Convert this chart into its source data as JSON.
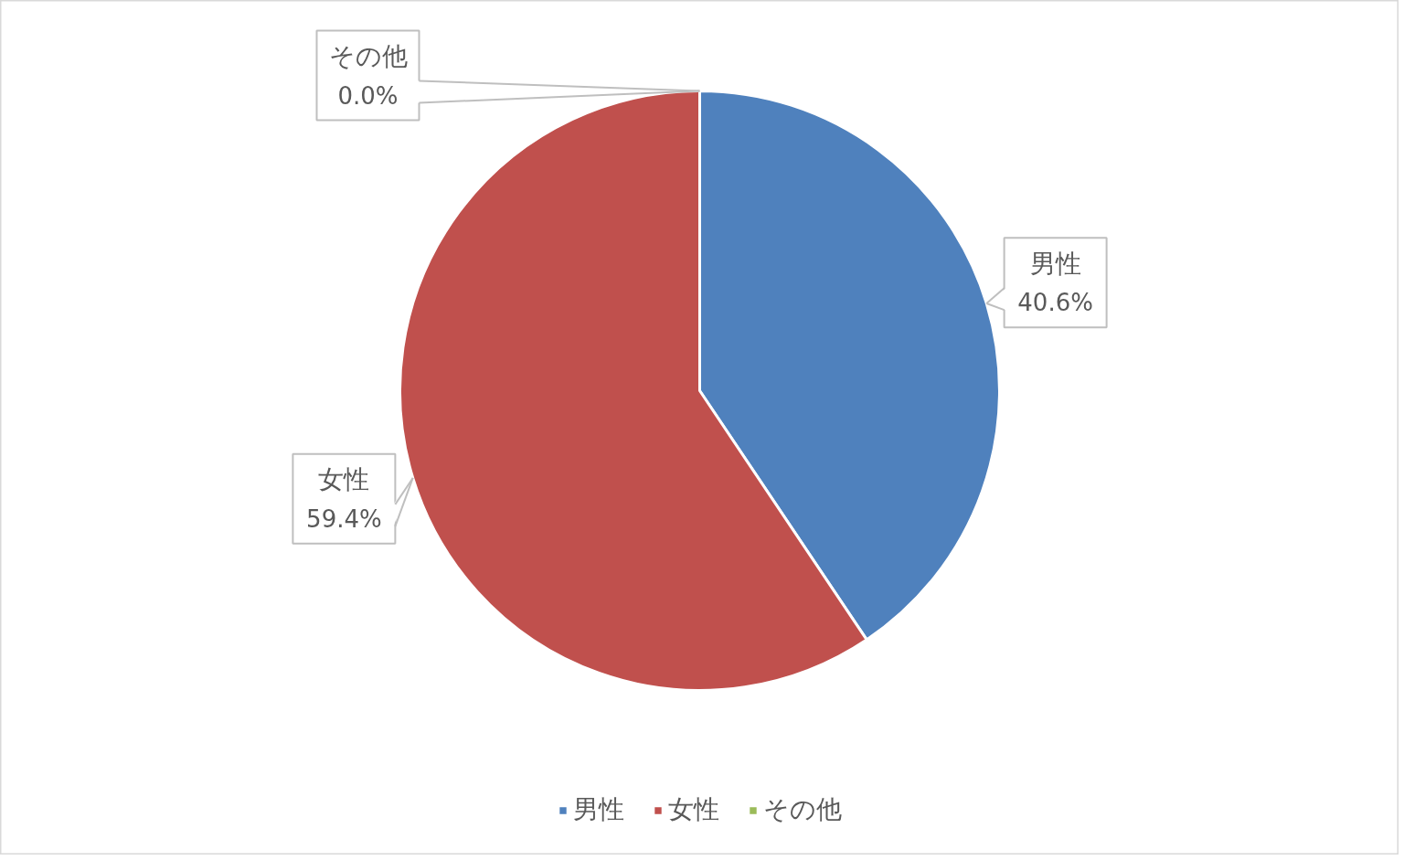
{
  "chart_data": {
    "type": "pie",
    "categories": [
      "男性",
      "女性",
      "その他"
    ],
    "values": [
      40.6,
      59.4,
      0.0
    ],
    "colors": [
      "#4f81bd",
      "#c0504d",
      "#9bbb59"
    ],
    "value_labels": [
      "40.6%",
      "59.4%",
      "0.0%"
    ],
    "legend": "bottom"
  }
}
